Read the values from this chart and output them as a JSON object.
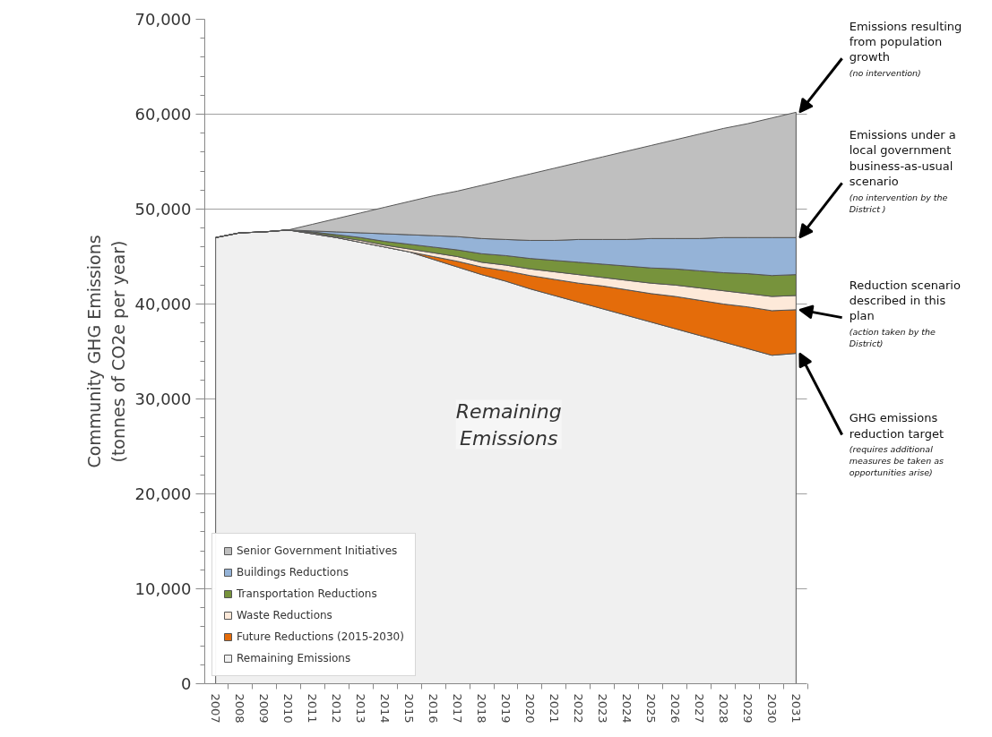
{
  "chart_data": {
    "type": "area",
    "stacked": true,
    "ylabel": "Community GHG Emissions\n(tonnes of CO2e per year)",
    "categories": [
      "2007",
      "2008",
      "2009",
      "2010",
      "2011",
      "2012",
      "2013",
      "2014",
      "2015",
      "2016",
      "2017",
      "2018",
      "2019",
      "2020",
      "2021",
      "2022",
      "2023",
      "2024",
      "2025",
      "2026",
      "2027",
      "2028",
      "2029",
      "2030",
      "2031"
    ],
    "series": [
      {
        "name": "Remaining Emissions",
        "color": "#f0f0f0",
        "values": [
          47000,
          47500,
          47600,
          47800,
          47400,
          47000,
          46500,
          46000,
          45500,
          44700,
          43900,
          43100,
          42400,
          41600,
          40900,
          40200,
          39500,
          38800,
          38100,
          37400,
          36700,
          36000,
          35300,
          34600,
          34800
        ]
      },
      {
        "name": "Future Reductions (2015-2030)",
        "color": "#e46c0a",
        "values": [
          0,
          0,
          0,
          0,
          0,
          0,
          0,
          0,
          0,
          300,
          600,
          800,
          1100,
          1400,
          1700,
          2000,
          2400,
          2700,
          3000,
          3400,
          3700,
          4000,
          4400,
          4700,
          4600
        ]
      },
      {
        "name": "Waste Reductions",
        "color": "#fde9d9",
        "values": [
          0,
          0,
          0,
          0,
          100,
          100,
          200,
          200,
          300,
          400,
          500,
          500,
          600,
          700,
          800,
          900,
          900,
          1000,
          1100,
          1200,
          1300,
          1400,
          1400,
          1500,
          1500
        ]
      },
      {
        "name": "Transportation Reductions",
        "color": "#77933c",
        "values": [
          0,
          0,
          0,
          0,
          100,
          200,
          300,
          400,
          500,
          600,
          700,
          900,
          1000,
          1100,
          1200,
          1300,
          1400,
          1500,
          1600,
          1700,
          1800,
          1900,
          2100,
          2200,
          2200
        ]
      },
      {
        "name": "Buildings Reductions",
        "color": "#95b3d7",
        "values": [
          0,
          0,
          0,
          0,
          100,
          300,
          500,
          800,
          1000,
          1200,
          1400,
          1600,
          1700,
          1900,
          2100,
          2400,
          2600,
          2800,
          3100,
          3200,
          3400,
          3700,
          3800,
          4000,
          3900
        ]
      },
      {
        "name": "Senior Government Initiatives",
        "color": "#bfbfbf",
        "values": [
          0,
          0,
          0,
          0,
          700,
          1400,
          2100,
          2800,
          3500,
          4200,
          4800,
          5600,
          6300,
          7000,
          7600,
          8100,
          8700,
          9300,
          9800,
          10400,
          11000,
          11500,
          12000,
          12600,
          13200
        ]
      }
    ],
    "ylim": [
      0,
      70000
    ],
    "yticks": [
      0,
      {
        "value": 10000,
        "label": "10,000"
      },
      {
        "value": 20000,
        "label": "20,000"
      },
      {
        "value": 30000,
        "label": "30,000"
      },
      {
        "value": 40000,
        "label": "40,000"
      },
      {
        "value": 50000,
        "label": "50,000"
      },
      {
        "value": 60000,
        "label": "60,000"
      },
      {
        "value": 70000,
        "label": "70,000"
      }
    ],
    "grid": "y",
    "legend": "bottom left",
    "annotations": [
      "Remaining Emissions",
      {
        "text": "Emissions resulting from population growth",
        "x": "2031",
        "y": 60200
      },
      "(no intervention)",
      {
        "text": "Emissions under a local government business-as-usual scenario",
        "x": "2031",
        "y": 47000
      },
      "(no intervention by the District )",
      {
        "text": "Reduction scenario described in this plan",
        "x": "2031",
        "y": 39400
      },
      "(action taken by the District)",
      {
        "text": "GHG emissions reduction target",
        "x": "2031",
        "y": 34800
      },
      "(requires additional measures be taken as opportunities arise)"
    ]
  }
}
